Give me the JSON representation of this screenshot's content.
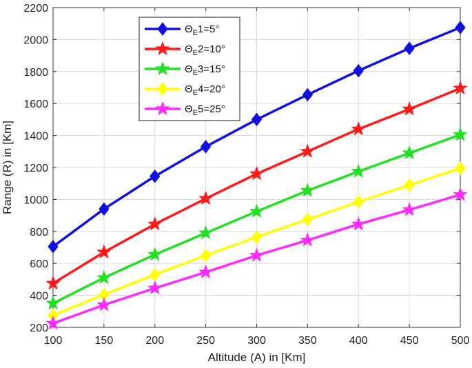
{
  "chart_data": {
    "type": "line",
    "title": "",
    "xlabel": "Altitude (A) in [Km]",
    "ylabel": "Range (R) in [Km]",
    "xlim": [
      100,
      500
    ],
    "ylim": [
      200,
      2200
    ],
    "x_ticks": [
      100,
      150,
      200,
      250,
      300,
      350,
      400,
      450,
      500
    ],
    "y_ticks": [
      200,
      400,
      600,
      800,
      1000,
      1200,
      1400,
      1600,
      1800,
      2000,
      2200
    ],
    "grid": true,
    "legend_position": "top-left-inside",
    "x": [
      100,
      150,
      200,
      250,
      300,
      350,
      400,
      450,
      500
    ],
    "series": [
      {
        "name": "ΘE1=5°",
        "legend_parts": {
          "base": "Θ",
          "sub": "E",
          "rest": "1=5°"
        },
        "color": "#1010e0",
        "marker": "diamond",
        "values": [
          705,
          940,
          1145,
          1330,
          1500,
          1655,
          1805,
          1945,
          2075
        ]
      },
      {
        "name": "ΘE2=10°",
        "legend_parts": {
          "base": "Θ",
          "sub": "E",
          "rest": "2=10°"
        },
        "color": "#ff1a1a",
        "marker": "star",
        "values": [
          475,
          670,
          845,
          1005,
          1160,
          1300,
          1440,
          1565,
          1695
        ]
      },
      {
        "name": "ΘE3=15°",
        "legend_parts": {
          "base": "Θ",
          "sub": "E",
          "rest": "3=15°"
        },
        "color": "#22e022",
        "marker": "star",
        "values": [
          350,
          510,
          655,
          790,
          925,
          1055,
          1175,
          1290,
          1405
        ]
      },
      {
        "name": "ΘE4=20°",
        "legend_parts": {
          "base": "Θ",
          "sub": "E",
          "rest": "4=20°"
        },
        "color": "#ffff00",
        "marker": "diamond",
        "values": [
          275,
          405,
          530,
          650,
          765,
          875,
          985,
          1090,
          1195
        ]
      },
      {
        "name": "ΘE5=25°",
        "legend_parts": {
          "base": "Θ",
          "sub": "E",
          "rest": "5=25°"
        },
        "color": "#ff2aff",
        "marker": "star",
        "values": [
          225,
          340,
          445,
          545,
          650,
          745,
          845,
          935,
          1030
        ]
      }
    ]
  }
}
